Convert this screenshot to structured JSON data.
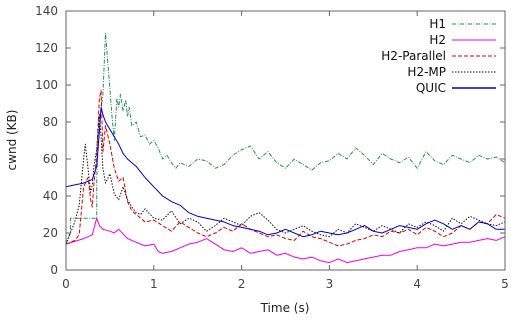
{
  "chart_data": {
    "type": "line",
    "title": "",
    "xlabel": "Time (s)",
    "ylabel": "cwnd (KB)",
    "xlim": [
      0,
      5
    ],
    "ylim": [
      0,
      140
    ],
    "xticks": [
      0,
      1,
      2,
      3,
      4,
      5
    ],
    "yticks": [
      0,
      20,
      40,
      60,
      80,
      100,
      120,
      140
    ],
    "grid": false,
    "legend_position": "top-right",
    "series": [
      {
        "name": "H1",
        "color": "#2e8b57",
        "dash": "dash-dot",
        "x": [
          0,
          0.02,
          0.05,
          0.05,
          0.35,
          0.35,
          0.38,
          0.42,
          0.45,
          0.48,
          0.5,
          0.52,
          0.55,
          0.58,
          0.6,
          0.62,
          0.65,
          0.68,
          0.7,
          0.72,
          0.75,
          0.8,
          0.85,
          0.9,
          0.95,
          1.0,
          1.05,
          1.1,
          1.15,
          1.2,
          1.25,
          1.3,
          1.4,
          1.5,
          1.6,
          1.7,
          1.8,
          1.9,
          2.0,
          2.1,
          2.2,
          2.3,
          2.4,
          2.5,
          2.6,
          2.7,
          2.8,
          2.9,
          3.0,
          3.1,
          3.2,
          3.3,
          3.4,
          3.5,
          3.6,
          3.7,
          3.8,
          3.9,
          4.0,
          4.1,
          4.2,
          4.3,
          4.4,
          4.5,
          4.6,
          4.7,
          4.8,
          4.9,
          5.0
        ],
        "y": [
          14,
          17,
          20,
          28,
          28,
          50,
          80,
          95,
          128,
          110,
          98,
          85,
          70,
          93,
          88,
          95,
          86,
          92,
          83,
          88,
          78,
          80,
          72,
          73,
          68,
          70,
          66,
          60,
          62,
          58,
          55,
          58,
          56,
          60,
          59,
          55,
          57,
          62,
          65,
          67,
          60,
          64,
          58,
          55,
          60,
          57,
          54,
          58,
          59,
          63,
          60,
          66,
          62,
          57,
          63,
          60,
          58,
          61,
          55,
          64,
          59,
          57,
          62,
          60,
          58,
          62,
          60,
          61,
          58
        ]
      },
      {
        "name": "H2",
        "color": "#ee00ee",
        "dash": "solid",
        "x": [
          0,
          0.2,
          0.3,
          0.35,
          0.38,
          0.42,
          0.5,
          0.55,
          0.6,
          0.7,
          0.8,
          0.9,
          1.0,
          1.05,
          1.1,
          1.2,
          1.3,
          1.4,
          1.5,
          1.6,
          1.7,
          1.8,
          1.9,
          2.0,
          2.1,
          2.2,
          2.3,
          2.4,
          2.5,
          2.6,
          2.7,
          2.8,
          2.9,
          3.0,
          3.1,
          3.2,
          3.3,
          3.4,
          3.5,
          3.6,
          3.7,
          3.8,
          3.9,
          4.0,
          4.1,
          4.2,
          4.3,
          4.4,
          4.5,
          4.6,
          4.7,
          4.8,
          4.9,
          5.0
        ],
        "y": [
          14,
          17,
          19,
          28,
          24,
          22,
          21,
          20,
          22,
          17,
          15,
          13,
          14,
          10,
          9,
          10,
          12,
          14,
          15,
          17,
          14,
          11,
          10,
          12,
          9,
          10,
          11,
          8,
          9,
          7,
          6,
          7,
          5,
          4,
          6,
          4,
          5,
          6,
          7,
          8,
          8,
          10,
          11,
          12,
          12,
          14,
          13,
          14,
          15,
          15,
          16,
          17,
          16,
          18
        ]
      },
      {
        "name": "H2-Parallel",
        "color": "#dd0000",
        "dash": "dashed",
        "x": [
          0,
          0.1,
          0.15,
          0.2,
          0.25,
          0.28,
          0.3,
          0.32,
          0.35,
          0.38,
          0.4,
          0.42,
          0.45,
          0.5,
          0.55,
          0.6,
          0.65,
          0.7,
          0.75,
          0.8,
          0.85,
          0.9,
          1.0,
          1.1,
          1.2,
          1.3,
          1.4,
          1.5,
          1.6,
          1.7,
          1.8,
          1.9,
          2.0,
          2.1,
          2.2,
          2.3,
          2.4,
          2.5,
          2.6,
          2.7,
          2.8,
          2.9,
          3.0,
          3.1,
          3.2,
          3.3,
          3.4,
          3.5,
          3.6,
          3.7,
          3.8,
          3.9,
          4.0,
          4.1,
          4.2,
          4.3,
          4.4,
          4.5,
          4.6,
          4.7,
          4.8,
          4.9,
          5.0
        ],
        "y": [
          14,
          16,
          19,
          45,
          50,
          38,
          34,
          48,
          62,
          93,
          97,
          64,
          78,
          68,
          55,
          48,
          50,
          37,
          32,
          30,
          28,
          26,
          27,
          24,
          21,
          26,
          23,
          20,
          18,
          20,
          23,
          21,
          25,
          22,
          20,
          18,
          19,
          17,
          16,
          21,
          18,
          17,
          15,
          13,
          14,
          16,
          17,
          19,
          18,
          21,
          20,
          22,
          19,
          23,
          21,
          18,
          20,
          24,
          22,
          26,
          25,
          30,
          28
        ]
      },
      {
        "name": "H2-MP",
        "color": "#111111",
        "dash": "dotted",
        "x": [
          0,
          0.05,
          0.1,
          0.15,
          0.2,
          0.22,
          0.25,
          0.28,
          0.3,
          0.32,
          0.35,
          0.38,
          0.4,
          0.42,
          0.45,
          0.5,
          0.55,
          0.6,
          0.65,
          0.7,
          0.75,
          0.8,
          0.85,
          0.9,
          1.0,
          1.1,
          1.2,
          1.3,
          1.4,
          1.5,
          1.6,
          1.7,
          1.8,
          1.9,
          2.0,
          2.1,
          2.2,
          2.3,
          2.4,
          2.5,
          2.6,
          2.7,
          2.8,
          2.9,
          3.0,
          3.1,
          3.2,
          3.3,
          3.4,
          3.5,
          3.6,
          3.7,
          3.8,
          3.9,
          4.0,
          4.1,
          4.2,
          4.3,
          4.4,
          4.5,
          4.6,
          4.7,
          4.8,
          4.9,
          5.0
        ],
        "y": [
          14,
          20,
          26,
          35,
          60,
          68,
          55,
          42,
          46,
          57,
          65,
          84,
          72,
          55,
          47,
          52,
          41,
          38,
          45,
          38,
          34,
          31,
          30,
          33,
          28,
          27,
          32,
          25,
          28,
          26,
          21,
          24,
          28,
          26,
          24,
          29,
          31,
          27,
          22,
          20,
          22,
          24,
          21,
          19,
          18,
          22,
          20,
          25,
          23,
          21,
          24,
          22,
          20,
          25,
          23,
          26,
          24,
          21,
          28,
          25,
          29,
          27,
          25,
          24,
          26
        ]
      },
      {
        "name": "QUIC",
        "color": "#0000cc",
        "dash": "solid",
        "x": [
          0,
          0.1,
          0.2,
          0.3,
          0.35,
          0.38,
          0.4,
          0.42,
          0.45,
          0.5,
          0.55,
          0.6,
          0.65,
          0.7,
          0.75,
          0.8,
          0.85,
          0.9,
          1.0,
          1.1,
          1.2,
          1.3,
          1.4,
          1.5,
          1.6,
          1.7,
          1.8,
          1.9,
          2.0,
          2.1,
          2.2,
          2.3,
          2.4,
          2.5,
          2.6,
          2.7,
          2.8,
          2.9,
          3.0,
          3.1,
          3.2,
          3.3,
          3.4,
          3.5,
          3.6,
          3.7,
          3.8,
          3.9,
          4.0,
          4.1,
          4.2,
          4.3,
          4.4,
          4.5,
          4.6,
          4.7,
          4.8,
          4.9,
          5.0
        ],
        "y": [
          45,
          46,
          47,
          49,
          56,
          75,
          88,
          84,
          80,
          76,
          72,
          68,
          63,
          60,
          58,
          56,
          53,
          50,
          45,
          40,
          37,
          35,
          31,
          29,
          28,
          27,
          26,
          24,
          23,
          22,
          21,
          19,
          20,
          22,
          20,
          18,
          19,
          21,
          20,
          19,
          20,
          22,
          24,
          21,
          20,
          22,
          24,
          23,
          22,
          25,
          27,
          25,
          22,
          24,
          22,
          26,
          25,
          22,
          22
        ]
      }
    ]
  }
}
